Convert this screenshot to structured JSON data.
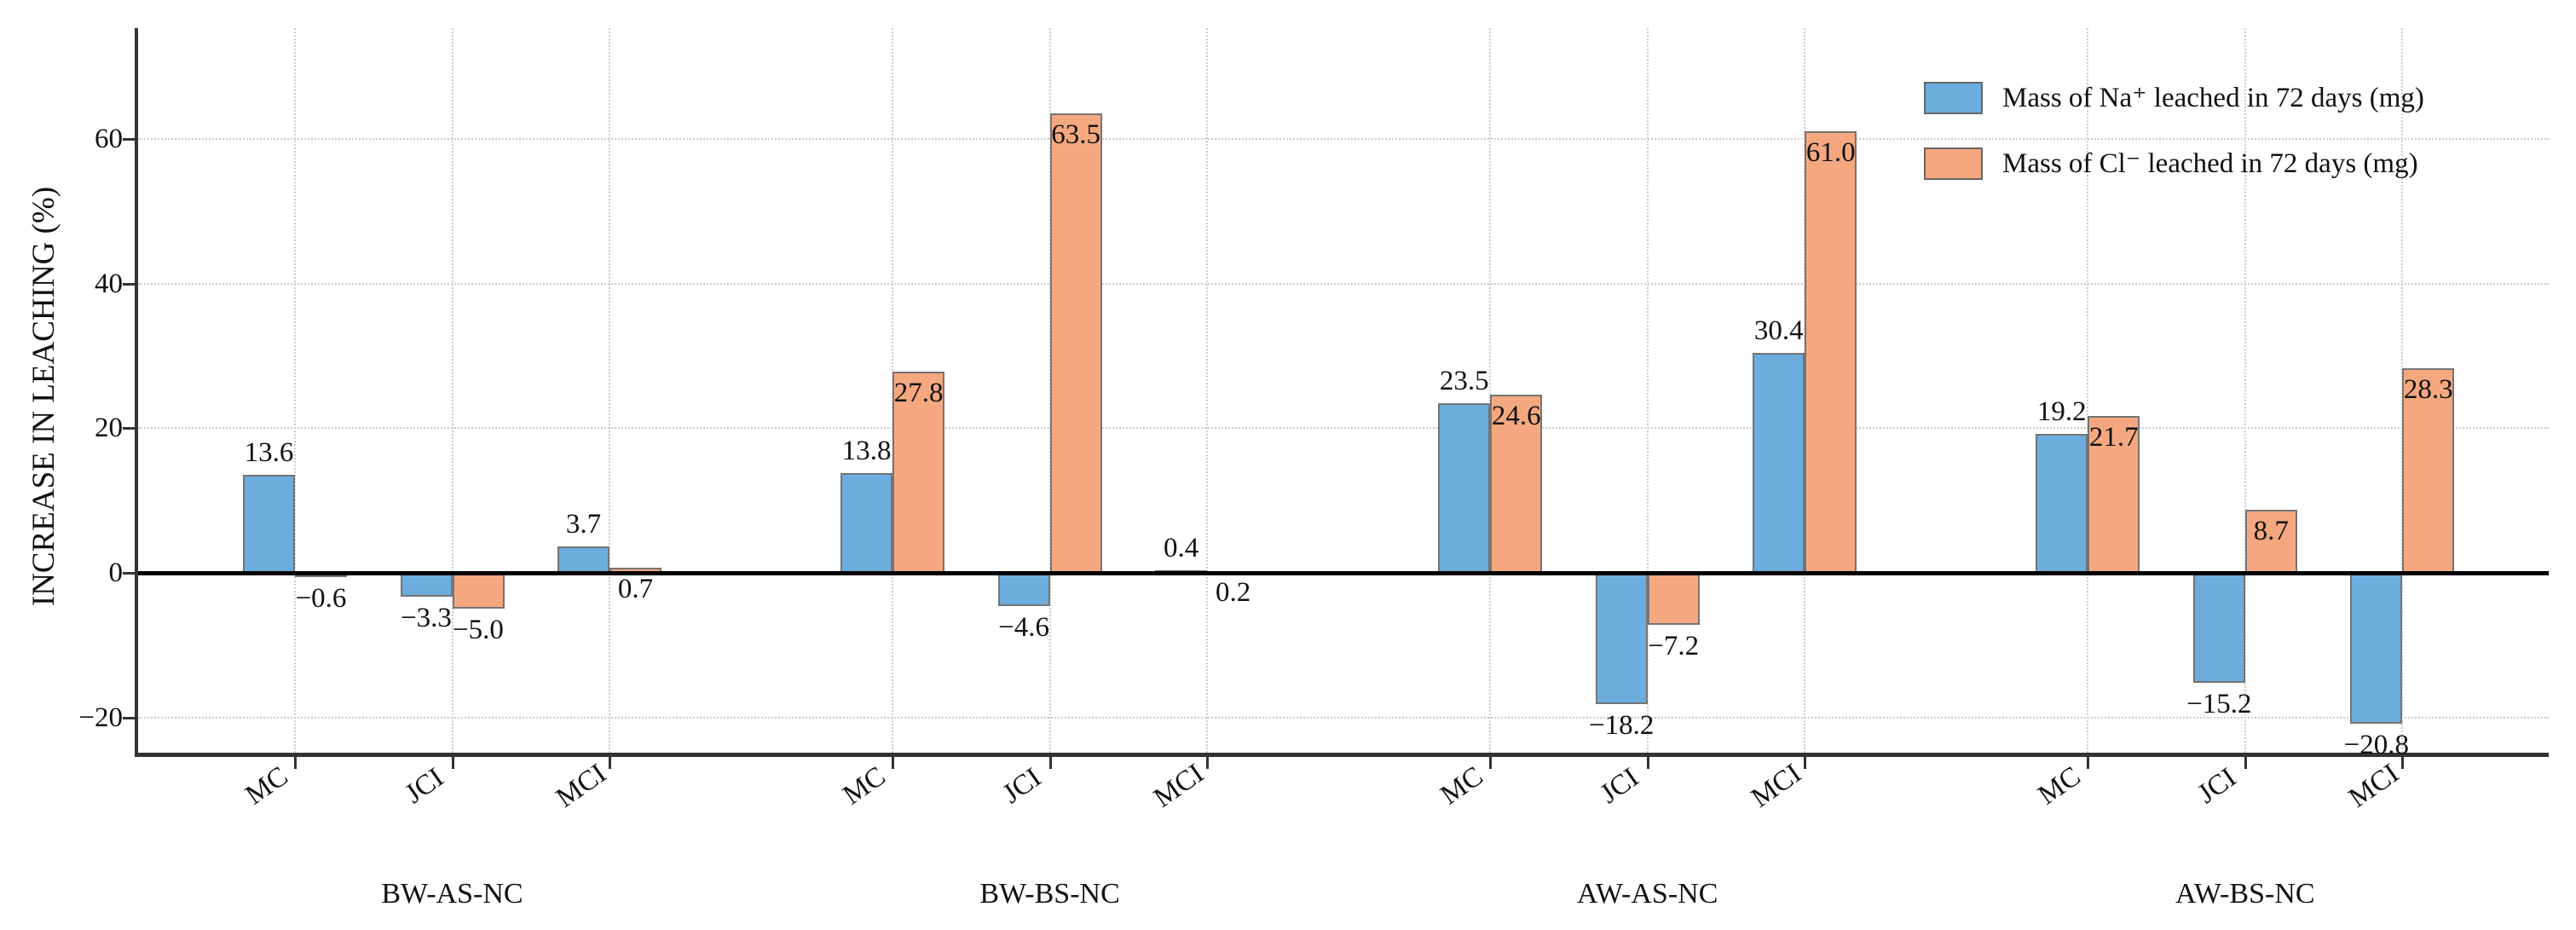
{
  "chart_data": {
    "type": "bar",
    "title": "",
    "ylabel": "INCREASE IN LEACHING (%)",
    "xlabel": "",
    "ylim": [
      -25,
      75
    ],
    "yticks": [
      -20,
      0,
      20,
      40,
      60
    ],
    "ytick_labels": [
      "−20",
      "0",
      "20",
      "40",
      "60"
    ],
    "grid": "dotted, both axes",
    "legend_position": "upper right",
    "legend_frame": false,
    "group_labels": [
      "BW-AS-NC",
      "BW-BS-NC",
      "AW-AS-NC",
      "AW-BS-NC"
    ],
    "categories_per_group": [
      "MC",
      "JCI",
      "MCI"
    ],
    "x_tick_labels": [
      "MC",
      "JCI",
      "MCI",
      "MC",
      "JCI",
      "MCI",
      "MC",
      "JCI",
      "MCI",
      "MC",
      "JCI",
      "MCI"
    ],
    "series": [
      {
        "name": "Mass of Na⁺ leached in 72 days (mg)",
        "color": "#6cadde",
        "edge_color": "#747474",
        "values": [
          13.6,
          -3.3,
          3.7,
          13.8,
          -4.6,
          0.4,
          23.5,
          -18.2,
          30.4,
          19.2,
          -15.2,
          -20.8
        ],
        "labels": [
          "13.6",
          "−3.3",
          "3.7",
          "13.8",
          "−4.6",
          "0.4",
          "23.5",
          "−18.2",
          "30.4",
          "19.2",
          "−15.2",
          "−20.8"
        ]
      },
      {
        "name": "Mass of Cl⁻ leached in 72 days (mg)",
        "color": "#f5a87f",
        "edge_color": "#747474",
        "values": [
          -0.6,
          -5.0,
          0.7,
          27.8,
          63.5,
          0.2,
          24.6,
          -7.2,
          61.0,
          21.7,
          8.7,
          28.3
        ],
        "labels": [
          "−0.6",
          "−5.0",
          "0.7",
          "27.8",
          "63.5",
          "0.2",
          "24.6",
          "−7.2",
          "61.0",
          "21.7",
          "8.7",
          "28.3"
        ]
      }
    ],
    "colors": {
      "na_bar": "#6cadde",
      "cl_bar": "#f5a87f",
      "bar_edge": "#747474",
      "grid": "#cccccc",
      "spine": "#333333",
      "zero_line": "#000000",
      "text": "#111111",
      "background": "#ffffff"
    }
  }
}
